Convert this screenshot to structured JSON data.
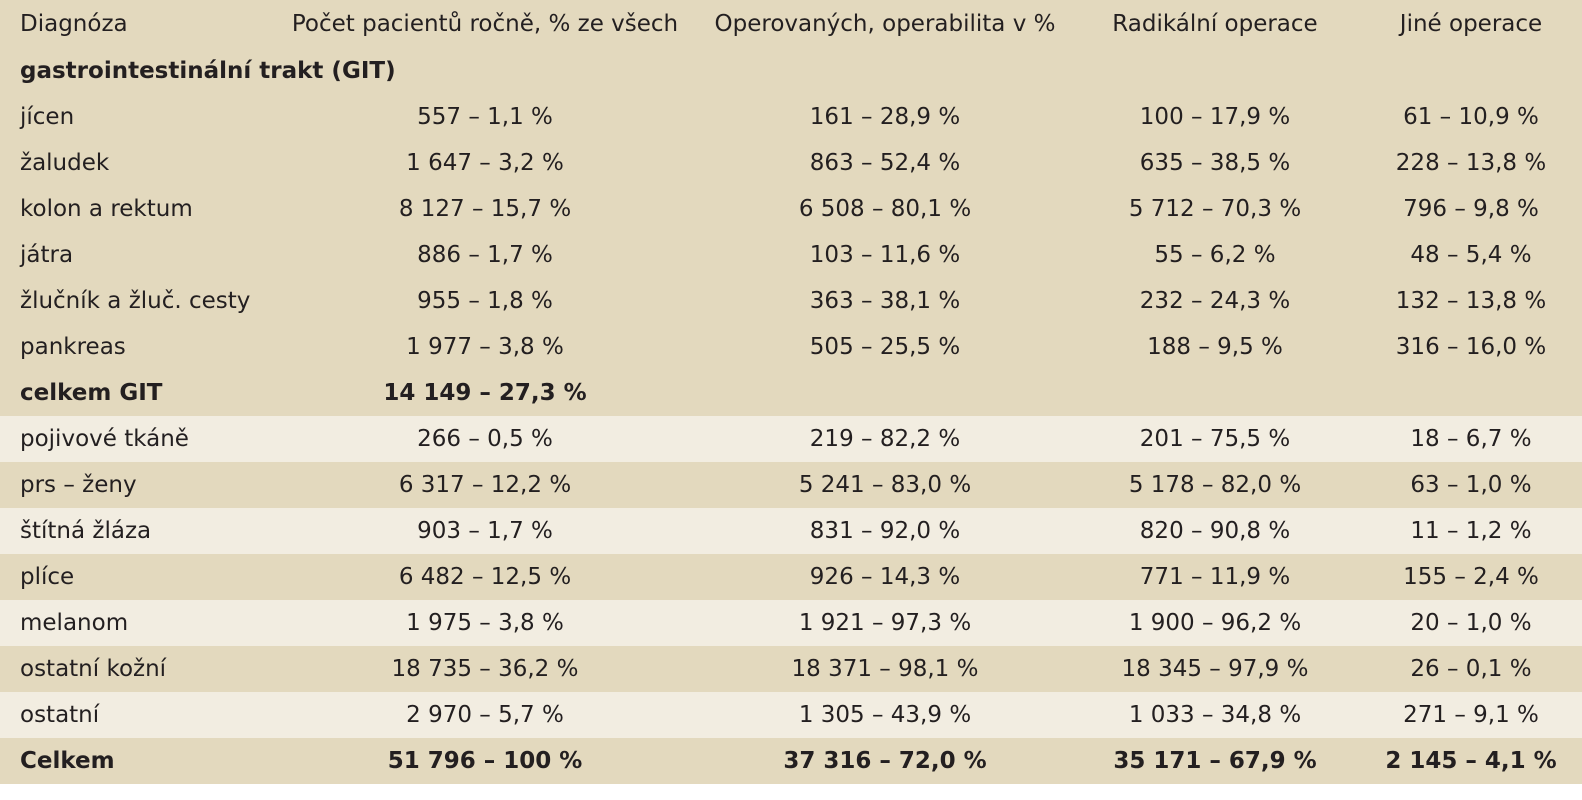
{
  "table": {
    "headers": [
      "Diagnóza",
      "Počet pacientů ročně, % ze všech",
      "Operovaných, operabilita v %",
      "Radikální operace",
      "Jiné operace"
    ],
    "sections": [
      {
        "title": "gastrointestinální trakt (GIT)",
        "shade": "dark",
        "rows": [
          [
            "jícen",
            "557 – 1,1 %",
            "161 – 28,9 %",
            "100 – 17,9 %",
            "61 – 10,9 %"
          ],
          [
            "žaludek",
            "1 647 – 3,2 %",
            "863 – 52,4 %",
            "635 – 38,5 %",
            "228 – 13,8 %"
          ],
          [
            "kolon a rektum",
            "8 127 – 15,7 %",
            "6 508 – 80,1 %",
            "5 712 – 70,3 %",
            "796 – 9,8 %"
          ],
          [
            "játra",
            "886 – 1,7 %",
            "103 – 11,6 %",
            "55 – 6,2 %",
            "48 – 5,4 %"
          ],
          [
            "žlučník a žluč. cesty",
            "955 – 1,8 %",
            "363 – 38,1 %",
            "232 – 24,3 %",
            "132 – 13,8 %"
          ],
          [
            "pankreas",
            "1 977 – 3,8 %",
            "505 – 25,5 %",
            "188 – 9,5 %",
            "316 – 16,0 %"
          ]
        ],
        "total": [
          "celkem GIT",
          "14 149 – 27,3 %"
        ]
      }
    ],
    "rows": [
      [
        "pojivové tkáně",
        "266 – 0,5 %",
        "219 – 82,2 %",
        "201 – 75,5 %",
        "18 – 6,7 %"
      ],
      [
        "prs – ženy",
        "6 317 – 12,2 %",
        "5 241 – 83,0 %",
        "5 178 – 82,0 %",
        "63 – 1,0 %"
      ],
      [
        "štítná žláza",
        "903 – 1,7 %",
        "831 – 92,0 %",
        "820 – 90,8 %",
        "11 – 1,2 %"
      ],
      [
        "plíce",
        "6 482 – 12,5 %",
        "926 – 14,3 %",
        "771 – 11,9 %",
        "155 – 2,4 %"
      ],
      [
        "melanom",
        "1 975 – 3,8 %",
        "1 921 – 97,3 %",
        "1 900 – 96,2 %",
        "20 – 1,0 %"
      ],
      [
        "ostatní kožní",
        "18 735 – 36,2 %",
        "18 371 – 98,1 %",
        "18 345 – 97,9 %",
        "26 – 0,1 %"
      ],
      [
        "ostatní",
        "2 970 – 5,7 %",
        "1 305 – 43,9 %",
        "1 033 – 34,8 %",
        "271 – 9,1 %"
      ]
    ],
    "grand_total": [
      "Celkem",
      "51 796 – 100 %",
      "37 316 – 72,0 %",
      "35 171 – 67,9 %",
      "2 145 – 4,1 %"
    ]
  },
  "colors": {
    "dark_row": "#e3d9be",
    "light_row": "#f2ede1",
    "text": "#231f20"
  }
}
